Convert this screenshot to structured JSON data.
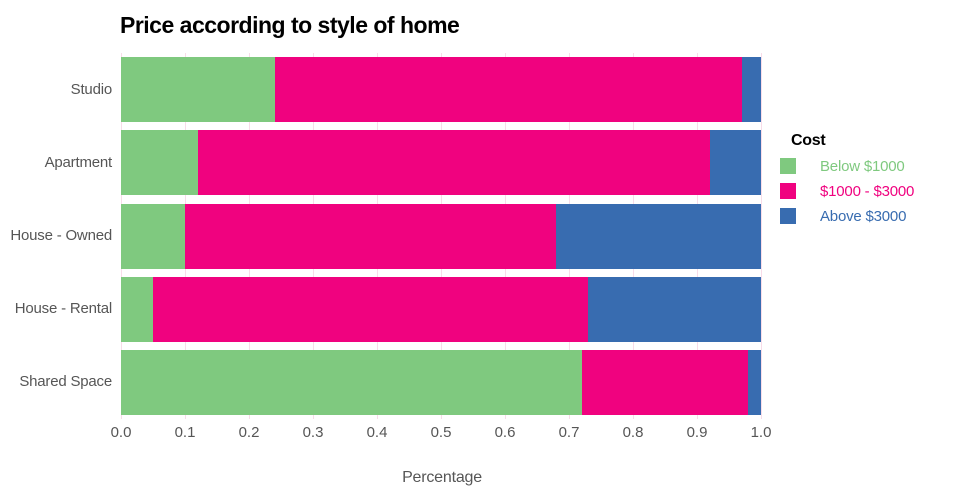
{
  "chart_data": {
    "type": "bar",
    "orientation": "horizontal",
    "stacked": true,
    "title": "Price according to style of home",
    "xlabel": "Percentage",
    "legend_title": "Cost",
    "legend_position": "right",
    "grid": true,
    "categories": [
      "Studio",
      "Apartment",
      "House - Owned",
      "House - Rental",
      "Shared Space"
    ],
    "series": [
      {
        "name": "Below $1000",
        "color": "#7fc97f",
        "values": [
          0.24,
          0.12,
          0.1,
          0.05,
          0.72
        ]
      },
      {
        "name": "$1000 - $3000",
        "color": "#f0027f",
        "values": [
          0.73,
          0.8,
          0.58,
          0.68,
          0.26
        ]
      },
      {
        "name": "Above $3000",
        "color": "#386cb0",
        "values": [
          0.03,
          0.08,
          0.32,
          0.27,
          0.02
        ]
      }
    ],
    "xlim": [
      0.0,
      1.0
    ],
    "xtick_labels": [
      "0.0",
      "0.1",
      "0.2",
      "0.3",
      "0.4",
      "0.5",
      "0.6",
      "0.7",
      "0.8",
      "0.9",
      "1.0"
    ],
    "colors": {
      "gridline": "#f8dce9",
      "axis_text": "#565656",
      "title_text": "#000000"
    }
  }
}
